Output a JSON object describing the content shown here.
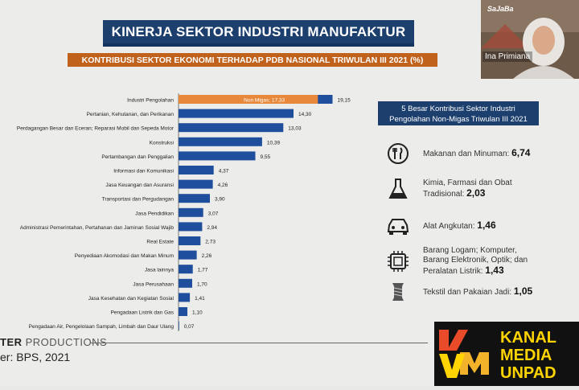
{
  "slide": {
    "title": "KINERJA SEKTOR INDUSTRI MANUFAKTUR",
    "subtitle": "KONTRIBUSI SEKTOR EKONOMI TERHADAP PDB NASIONAL TRIWULAN III 2021 (%)",
    "footer_production": "TER PRODUCTIONS",
    "footer_production_bold": "TER",
    "footer_production_rest": "PRODUCTIONS",
    "footer_source": "er: BPS, 2021"
  },
  "chart_data": {
    "type": "bar",
    "orientation": "horizontal",
    "title": "KONTRIBUSI SEKTOR EKONOMI TERHADAP PDB NASIONAL TRIWULAN III 2021 (%)",
    "categories": [
      "Industri Pengolahan",
      "Pertanian, Kehutanan, dan Perikanan",
      "Perdagangan Besar dan Eceran; Reparasi Mobil dan Sepeda Motor",
      "Konstruksi",
      "Pertambangan dan Penggalian",
      "Informasi dan Komunikasi",
      "Jasa Keuangan dan Asuransi",
      "Transportasi dan Pergudangan",
      "Jasa Pendidikan",
      "Administrasi Pemerintahan, Pertahanan dan Jaminan Sosial Wajib",
      "Real Estate",
      "Penyediaan Akomodasi dan Makan Minum",
      "Jasa lainnya",
      "Jasa Perusahaan",
      "Jasa Kesehatan dan Kegiatan Sosial",
      "Pengadaan Listrik dan Gas",
      "Pengadaan Air, Pengelolaan Sampah, Limbah dan Daur Ulang"
    ],
    "values": [
      19.15,
      14.3,
      13.03,
      10.39,
      9.55,
      4.37,
      4.26,
      3.9,
      3.07,
      2.94,
      2.73,
      2.26,
      1.77,
      1.7,
      1.41,
      1.1,
      0.07
    ],
    "labels": [
      "19,15",
      "14,30",
      "13,03",
      "10,39",
      "9,55",
      "4,37",
      "4,26",
      "3,90",
      "3,07",
      "2,94",
      "2,73",
      "2,26",
      "1,77",
      "1,70",
      "1,41",
      "1,10",
      "0,07"
    ],
    "highlight": {
      "category_index": 0,
      "value": 17.33,
      "label": "Non Migas; 17,33",
      "color": "#e8883a"
    },
    "bar_color": "#1f4e9c",
    "xlim": [
      0,
      20
    ]
  },
  "panel": {
    "header_line1": "5 Besar Kontribusi Sektor Industri",
    "header_line2": "Pengolahan Non-Migas Triwulan III 2021",
    "items": [
      {
        "icon": "food-icon",
        "text": "Makanan dan Minuman:",
        "value": "6,74"
      },
      {
        "icon": "flask-icon",
        "text": "Kimia, Farmasi dan Obat Tradisional:",
        "value": "2,03"
      },
      {
        "icon": "car-icon",
        "text": "Alat Angkutan:",
        "value": "1,46"
      },
      {
        "icon": "chip-icon",
        "text": "Barang Logam; Komputer, Barang Elektronik, Optik; dan Peralatan Listrik:",
        "value": "1,43"
      },
      {
        "icon": "thread-icon",
        "text": "Tekstil dan Pakaian Jadi:",
        "value": "1,05"
      }
    ]
  },
  "webcam": {
    "name": "Ina Primiana"
  },
  "brand": {
    "line1": "KANAL",
    "line2": "MEDIA",
    "line3": "UNPAD",
    "mark": "KMU",
    "corner_logo": "SaJaBa"
  }
}
